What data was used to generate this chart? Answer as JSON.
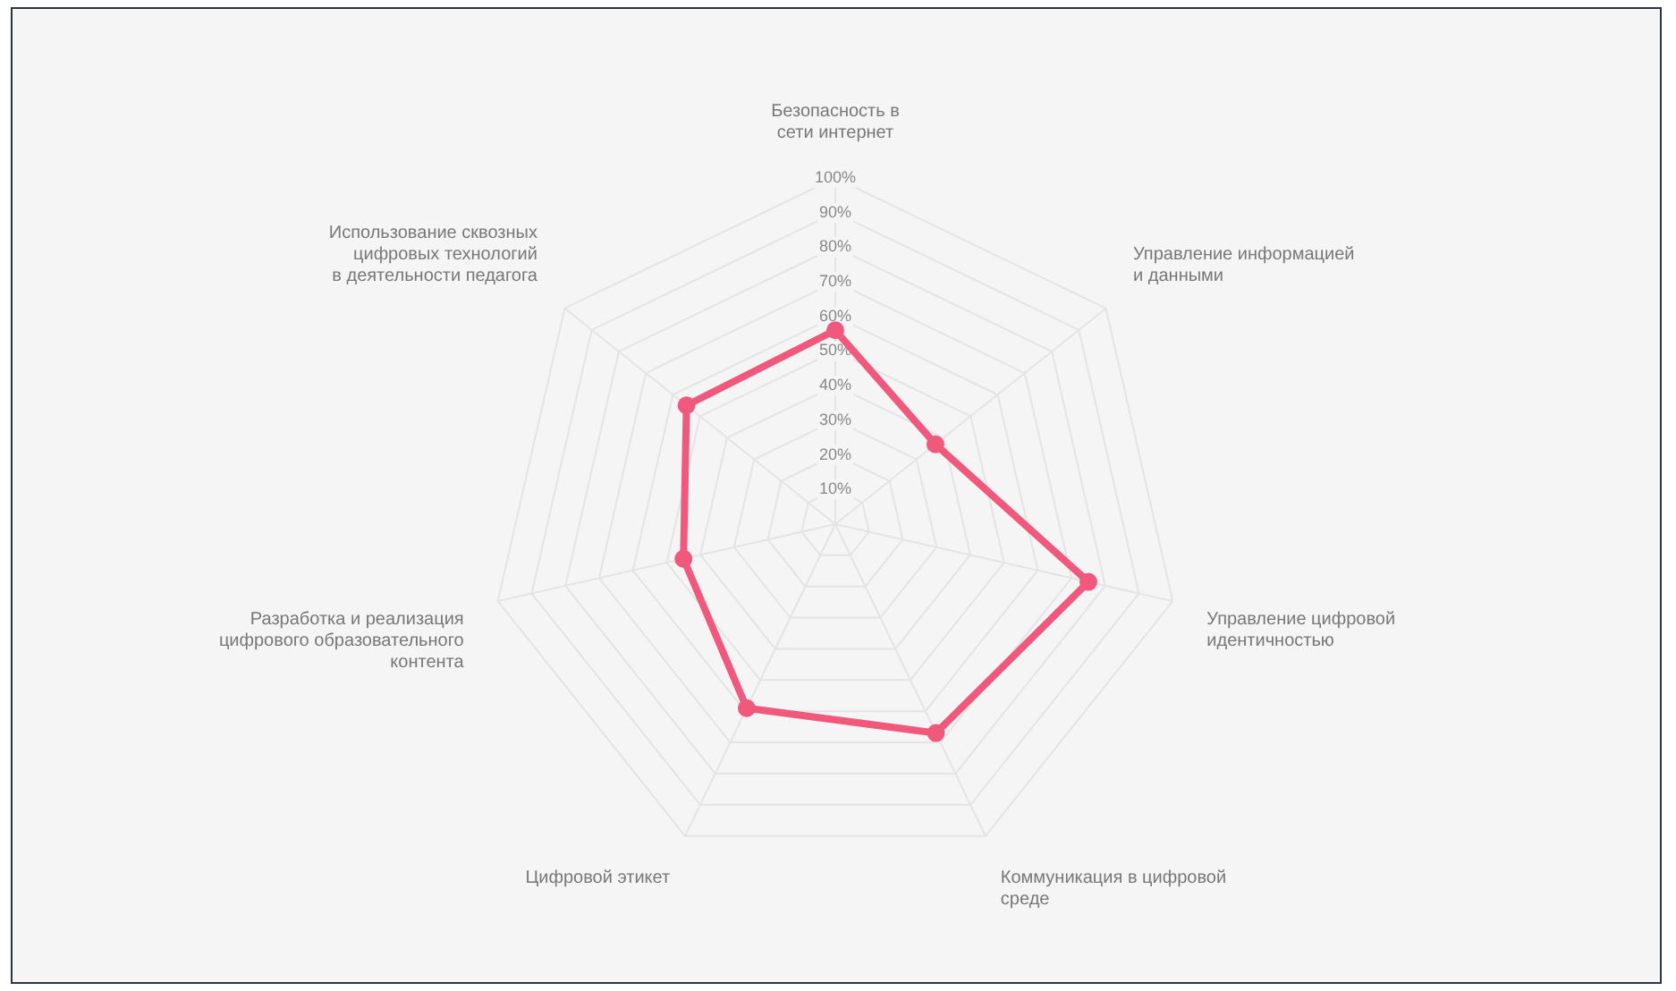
{
  "chart_data": {
    "type": "radar",
    "categories": [
      "Безопасность в\nсети интернет",
      "Управление информацией\nи данными",
      "Управление цифровой\nидентичностью",
      "Коммуникация в цифровой\nсреде",
      "Цифровой этикет",
      "Разработка и реализация\nцифрового образовательного\nконтента",
      "Использование сквозных\nцифровых технологий\nв деятельности педагога"
    ],
    "series": [
      {
        "color": "#f0587c",
        "values": [
          56,
          37,
          75,
          67,
          59,
          45,
          55
        ]
      }
    ],
    "ylim": [
      0,
      100
    ],
    "yticks": [
      {
        "value": 10,
        "label": "10%"
      },
      {
        "value": 20,
        "label": "20%"
      },
      {
        "value": 30,
        "label": "30%"
      },
      {
        "value": 40,
        "label": "40%"
      },
      {
        "value": 50,
        "label": "50%"
      },
      {
        "value": 60,
        "label": "60%"
      },
      {
        "value": 70,
        "label": "70%"
      },
      {
        "value": 80,
        "label": "80%"
      },
      {
        "value": 90,
        "label": "90%"
      },
      {
        "value": 100,
        "label": "100%"
      }
    ],
    "grid": true,
    "legend": false,
    "marker": "circle",
    "line_style": "solid"
  }
}
